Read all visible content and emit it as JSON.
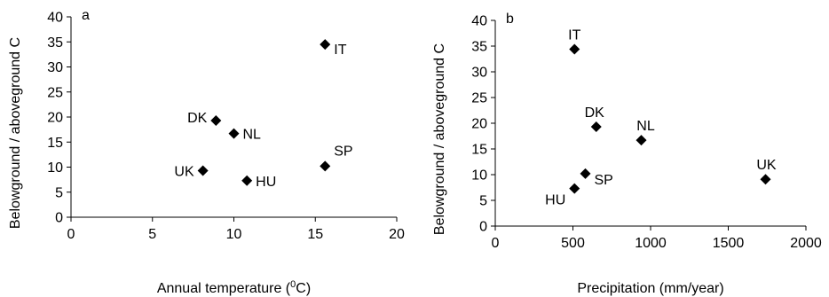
{
  "chart_data": [
    {
      "type": "scatter",
      "panel_label": "a",
      "xlabel": "Annual temperature (",
      "xlabel_sup": "0",
      "xlabel_suffix": "C)",
      "ylabel": "Belowground / aboveground C",
      "xlim": [
        0,
        20
      ],
      "ylim": [
        0,
        40
      ],
      "xticks": [
        "0",
        "5",
        "10",
        "15",
        "20"
      ],
      "yticks": [
        "0",
        "5",
        "10",
        "15",
        "20",
        "25",
        "30",
        "35",
        "40"
      ],
      "marker": "diamond",
      "points": [
        {
          "label": "IT",
          "x": 15.6,
          "y": 34.5
        },
        {
          "label": "DK",
          "x": 8.9,
          "y": 19.3
        },
        {
          "label": "NL",
          "x": 10.0,
          "y": 16.7
        },
        {
          "label": "SP",
          "x": 15.6,
          "y": 10.2
        },
        {
          "label": "UK",
          "x": 8.1,
          "y": 9.3
        },
        {
          "label": "HU",
          "x": 10.8,
          "y": 7.3
        }
      ]
    },
    {
      "type": "scatter",
      "panel_label": "b",
      "xlabel": "Precipitation (mm/year)",
      "ylabel": "Belowground / aboveground C",
      "xlim": [
        0,
        2000
      ],
      "ylim": [
        0,
        40
      ],
      "xticks": [
        "0",
        "500",
        "1000",
        "1500",
        "2000"
      ],
      "yticks": [
        "0",
        "5",
        "10",
        "15",
        "20",
        "25",
        "30",
        "35",
        "40"
      ],
      "marker": "diamond",
      "points": [
        {
          "label": "IT",
          "x": 510,
          "y": 34.4
        },
        {
          "label": "DK",
          "x": 650,
          "y": 19.3
        },
        {
          "label": "NL",
          "x": 940,
          "y": 16.7
        },
        {
          "label": "UK",
          "x": 1740,
          "y": 9.1
        },
        {
          "label": "SP",
          "x": 580,
          "y": 10.2
        },
        {
          "label": "HU",
          "x": 510,
          "y": 7.3
        }
      ]
    }
  ]
}
